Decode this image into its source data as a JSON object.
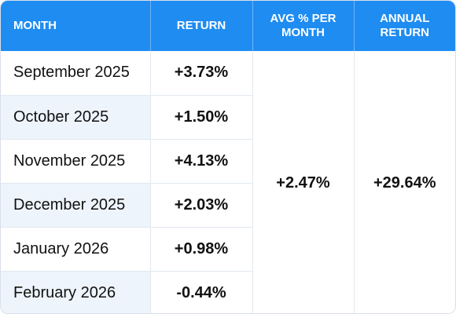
{
  "header": {
    "month": "MONTH",
    "return": "RETURN",
    "avg_per_month": "AVG % PER MONTH",
    "annual_return": "ANNUAL RETURN"
  },
  "rows": [
    {
      "month": "September 2025",
      "return": "+3.73%"
    },
    {
      "month": "October 2025",
      "return": "+1.50%"
    },
    {
      "month": "November 2025",
      "return": "+4.13%"
    },
    {
      "month": "December 2025",
      "return": "+2.03%"
    },
    {
      "month": "January 2026",
      "return": "+0.98%"
    },
    {
      "month": "February 2026",
      "return": "-0.44%"
    }
  ],
  "summary": {
    "avg_per_month": "+2.47%",
    "annual_return": "+29.64%"
  },
  "colors": {
    "header_bg": "#1f8cf2",
    "header_text": "#ffffff",
    "alt_row_bg": "#eef4fb",
    "border": "#e2e8f0"
  }
}
